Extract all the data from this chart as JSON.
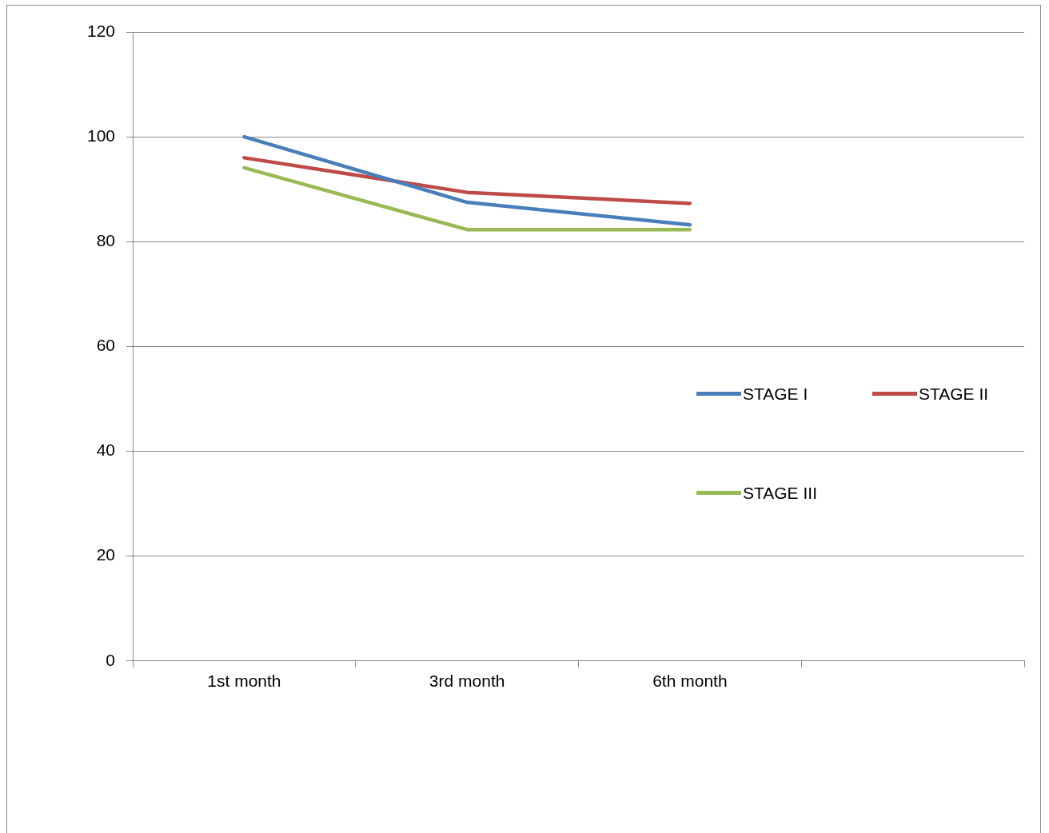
{
  "chart_data": {
    "type": "line",
    "categories": [
      "1st month",
      "3rd month",
      "6th month",
      null
    ],
    "series": [
      {
        "name": "STAGE I",
        "color": "#4a7ebb",
        "values": [
          100,
          87.5,
          83.2,
          null
        ]
      },
      {
        "name": "STAGE II",
        "color": "#be4b48",
        "values": [
          96.0,
          89.4,
          87.3,
          null
        ]
      },
      {
        "name": "STAGE III",
        "color": "#98b954",
        "values": [
          94.1,
          82.3,
          82.3,
          null
        ]
      }
    ],
    "ylim": [
      0,
      120
    ],
    "yticks": [
      0,
      20,
      40,
      60,
      80,
      100,
      120
    ],
    "grid": "y",
    "legend": "right",
    "marker": "none",
    "line_style": "solid"
  }
}
